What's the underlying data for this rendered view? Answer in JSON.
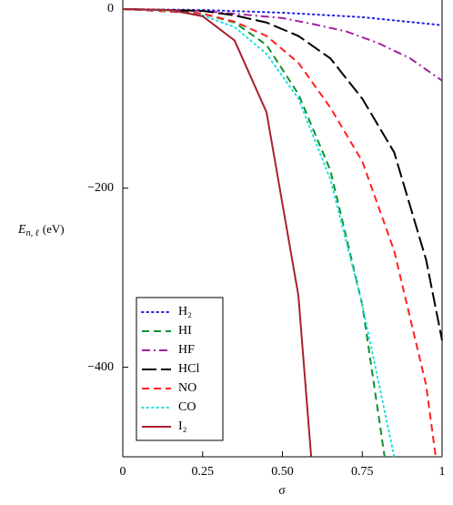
{
  "chart_data": {
    "type": "line",
    "xlabel": "σ",
    "ylabel": {
      "symbol": "E",
      "subscript": "n, ℓ",
      "unit": "(eV)"
    },
    "xlim": [
      0,
      1
    ],
    "ylim": [
      -500,
      0
    ],
    "xticks": [
      0,
      0.25,
      {
        "value": 0.5,
        "label": "0.50"
      },
      0.75,
      1
    ],
    "yticks": [
      0,
      {
        "value": -200,
        "label": "−200"
      },
      {
        "value": -400,
        "label": "−400"
      }
    ],
    "series": [
      {
        "name": "H₂",
        "color": "#2020e0",
        "style": "dot",
        "x": [
          0,
          0.25,
          0.5,
          0.75,
          1
        ],
        "values": [
          0,
          -1,
          -4,
          -9,
          -18
        ]
      },
      {
        "name": "HI",
        "color": "#109030",
        "style": "dash",
        "x": [
          0,
          0.15,
          0.25,
          0.35,
          0.45,
          0.55,
          0.65,
          0.75,
          0.82
        ],
        "values": [
          0,
          -1,
          -5,
          -15,
          -40,
          -95,
          -180,
          -330,
          -500
        ]
      },
      {
        "name": "HF",
        "color": "#a020a0",
        "style": "dashdot",
        "x": [
          0,
          0.25,
          0.5,
          0.6,
          0.7,
          0.8,
          0.9,
          1
        ],
        "values": [
          0,
          -2,
          -10,
          -17,
          -25,
          -38,
          -55,
          -80
        ]
      },
      {
        "name": "HCl",
        "color": "#000000",
        "style": "longdash",
        "x": [
          0,
          0.25,
          0.35,
          0.45,
          0.55,
          0.65,
          0.75,
          0.85,
          0.95,
          1
        ],
        "values": [
          0,
          -2,
          -7,
          -15,
          -30,
          -55,
          -100,
          -160,
          -280,
          -370
        ]
      },
      {
        "name": "NO",
        "color": "#ff2020",
        "style": "dash",
        "x": [
          0,
          0.25,
          0.35,
          0.45,
          0.55,
          0.65,
          0.75,
          0.85,
          0.95,
          0.98
        ],
        "values": [
          0,
          -5,
          -14,
          -30,
          -60,
          -110,
          -170,
          -270,
          -420,
          -500
        ]
      },
      {
        "name": "CO",
        "color": "#20e0e0",
        "style": "dot",
        "x": [
          0,
          0.15,
          0.25,
          0.35,
          0.45,
          0.55,
          0.65,
          0.75,
          0.85
        ],
        "values": [
          0,
          -2,
          -7,
          -20,
          -50,
          -100,
          -190,
          -330,
          -500
        ]
      },
      {
        "name": "I₂",
        "color": "#a82030",
        "style": "solid",
        "x": [
          0,
          0.15,
          0.25,
          0.35,
          0.45,
          0.55,
          0.59
        ],
        "values": [
          0,
          -1,
          -8,
          -35,
          -115,
          -320,
          -500
        ]
      }
    ]
  }
}
